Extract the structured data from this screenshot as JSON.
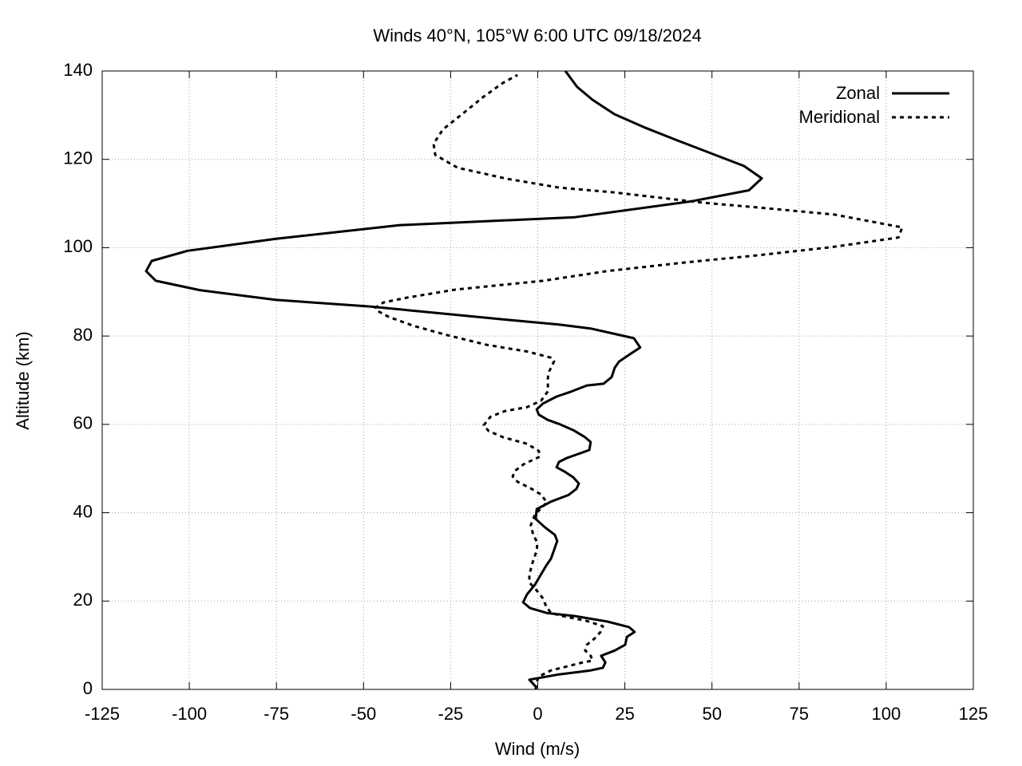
{
  "chart_data": {
    "type": "line",
    "title": "Winds 40°N, 105°W 6:00 UTC 09/18/2024",
    "x_label": "Wind (m/s)",
    "y_label": "Altitude (km)",
    "xlim": [
      -125,
      125
    ],
    "xticks": [
      -125,
      -100,
      -75,
      -50,
      -25,
      0,
      25,
      50,
      75,
      100,
      125
    ],
    "ylim": [
      0,
      140
    ],
    "yticks": [
      0,
      20,
      40,
      60,
      80,
      100,
      120,
      140
    ],
    "grid": true,
    "legend": "top-right",
    "series": [
      {
        "name": "Zonal",
        "color": "#000000",
        "dash": "solid",
        "x": [
          -0.3,
          -2.4,
          6.1,
          15.2,
          18.7,
          19.4,
          18.2,
          22.1,
          25.1,
          25.6,
          27.8,
          26.2,
          19.8,
          10.7,
          2.6,
          -2.2,
          -4.2,
          -3.1,
          -0.8,
          2.4,
          3.8,
          5.6,
          4.9,
          1.9,
          -0.6,
          -0.3,
          3.8,
          8.8,
          11.1,
          11.8,
          10.2,
          7.9,
          5.4,
          6.1,
          8.4,
          14.8,
          15.2,
          13.4,
          10.2,
          6.1,
          2.9,
          0.3,
          -0.3,
          1.5,
          5.4,
          9.5,
          14.1,
          18.9,
          21.2,
          22.1,
          23.3,
          26.7,
          29.4,
          27.6,
          15.2,
          6.1,
          -8.8,
          -26,
          -48.2,
          -75.3,
          -97,
          -109.6,
          -112.4,
          -110.8,
          -100.5,
          -75.3,
          -39.8,
          10.7,
          44.1,
          60.6,
          64.3,
          59.2,
          50.3,
          40,
          30.4,
          22.1,
          15.7,
          11.3,
          8.4,
          7.9
        ],
        "y": [
          0.4,
          2.2,
          3.4,
          4.3,
          4.9,
          6.1,
          7.6,
          8.8,
          10.1,
          11.9,
          13.0,
          14.1,
          15.4,
          16.6,
          17.3,
          18.4,
          19.7,
          21.5,
          23.7,
          28.0,
          29.6,
          33.6,
          35.0,
          36.8,
          38.6,
          40.8,
          42.5,
          44.0,
          45.4,
          46.6,
          48.0,
          49.2,
          50.3,
          51.5,
          52.4,
          54.2,
          56.0,
          57.2,
          58.7,
          60.1,
          61.0,
          62.2,
          63.4,
          64.7,
          66.3,
          67.4,
          68.8,
          69.2,
          70.7,
          72.8,
          74.2,
          76.0,
          77.4,
          79.5,
          81.7,
          82.6,
          83.7,
          85.0,
          86.7,
          88.2,
          90.4,
          92.5,
          94.7,
          97.0,
          99.3,
          102.0,
          105.1,
          106.9,
          110.5,
          113.0,
          115.7,
          118.5,
          121.2,
          124.3,
          127.3,
          130.2,
          133.5,
          136.4,
          139.5,
          140
        ]
      },
      {
        "name": "Meridional",
        "color": "#000000",
        "dash": "dashed",
        "x": [
          -0.6,
          -0.3,
          0.3,
          3.8,
          8.4,
          12.9,
          15.7,
          15.2,
          13.6,
          14.1,
          16.4,
          18,
          18.7,
          14.1,
          7.2,
          3.8,
          2.4,
          1.5,
          -0.3,
          -2.4,
          -2.4,
          -1.5,
          -0.3,
          -0.1,
          -1.3,
          -2.0,
          -0.8,
          2.6,
          1.0,
          -2.0,
          -5.8,
          -7.2,
          -6.5,
          -4.0,
          0.6,
          0.3,
          -3.1,
          -10,
          -14.1,
          -15.5,
          -13.6,
          -9.5,
          -3.1,
          1.0,
          2.9,
          2.9,
          3.3,
          4.7,
          3.8,
          -3.1,
          -14.6,
          -26,
          -35.6,
          -42.7,
          -45.5,
          -46.6,
          -44.3,
          -37.5,
          -23.7,
          1.5,
          19.8,
          40.4,
          63.4,
          84,
          103.5,
          104.6,
          85.1,
          63.4,
          47.3,
          22.1,
          6.1,
          -8.8,
          -23,
          -29.4,
          -29.9,
          -27.2,
          -21.9,
          -15.7,
          -10,
          -5.8
        ],
        "y": [
          0,
          1.6,
          2.9,
          4.3,
          5.2,
          6.1,
          6.5,
          7.6,
          8.8,
          10.1,
          11.6,
          13.0,
          14.3,
          15.5,
          16.6,
          17.3,
          18.8,
          20.6,
          22.4,
          24.2,
          26.0,
          28.7,
          31.4,
          33.2,
          35.0,
          37.2,
          39.6,
          42.3,
          44.1,
          45.5,
          47.0,
          48.2,
          49.5,
          51.0,
          52.7,
          54.0,
          55.6,
          57.1,
          58.5,
          59.8,
          61.7,
          63.0,
          63.9,
          65.4,
          67.5,
          70.6,
          72.0,
          74.3,
          75.1,
          76.5,
          78.0,
          80.2,
          82.3,
          84.3,
          85.5,
          86.4,
          87.6,
          88.7,
          90.5,
          92.5,
          94.7,
          96.5,
          98.3,
          100.1,
          102.3,
          104.6,
          107.5,
          109.1,
          110.2,
          112.5,
          113.6,
          115.6,
          118.1,
          121.0,
          123.5,
          126.8,
          130.1,
          134.1,
          137.3,
          139.1
        ]
      }
    ]
  }
}
